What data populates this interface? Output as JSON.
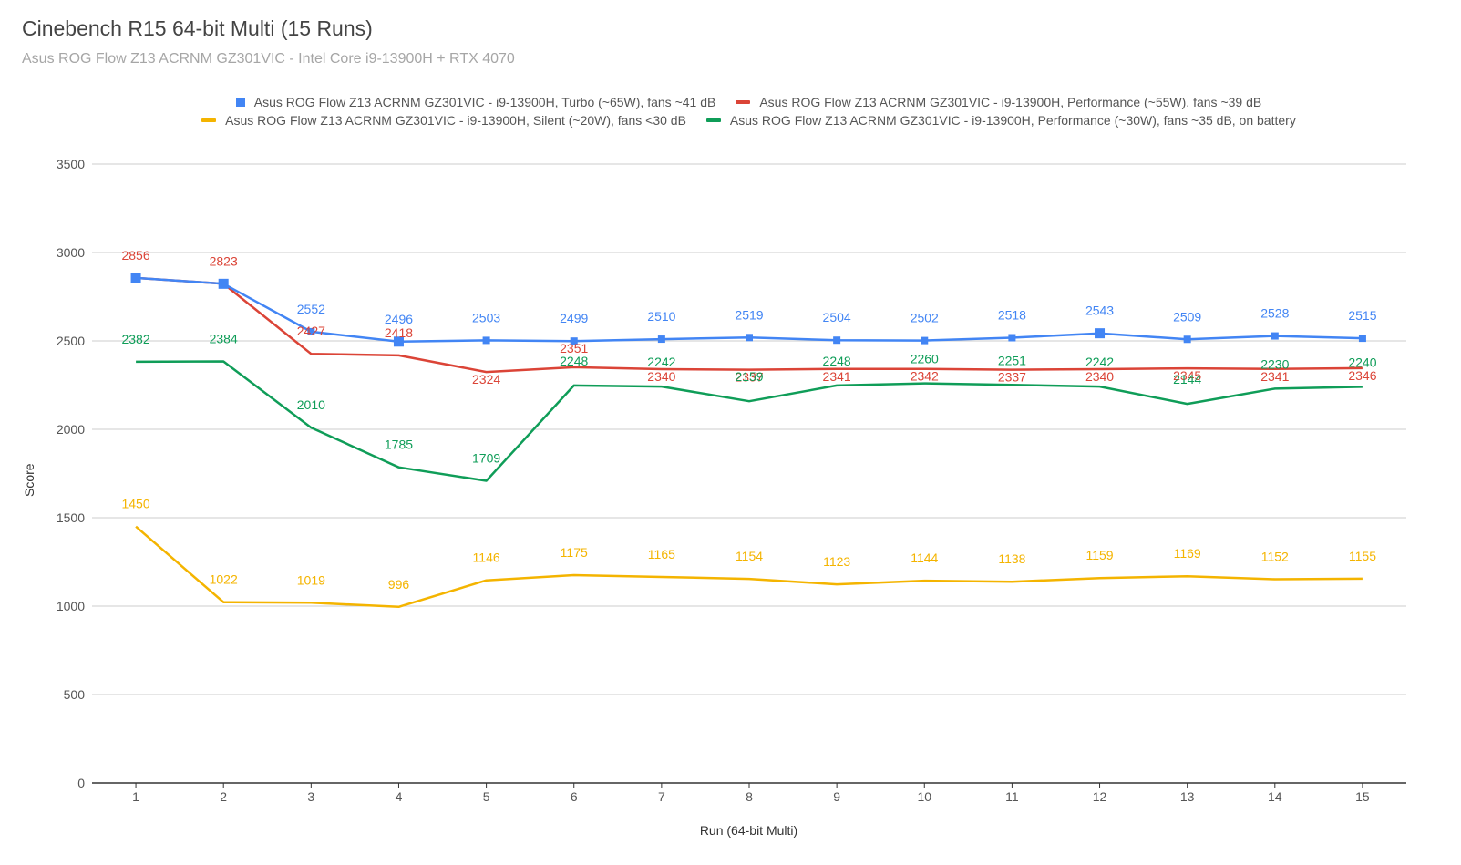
{
  "chart_data": {
    "type": "line",
    "title": "Cinebench R15 64-bit Multi (15 Runs)",
    "subtitle": "Asus ROG Flow Z13 ACRNM GZ301VIC - Intel Core i9-13900H + RTX 4070",
    "xlabel": "Run (64-bit Multi)",
    "ylabel": "Score",
    "ylim": [
      0,
      3500
    ],
    "yticks": [
      "0",
      "500",
      "1000",
      "1500",
      "2000",
      "2500",
      "3000",
      "3500"
    ],
    "categories": [
      "1",
      "2",
      "3",
      "4",
      "5",
      "6",
      "7",
      "8",
      "9",
      "10",
      "11",
      "12",
      "13",
      "14",
      "15"
    ],
    "legend_position": "top-center",
    "series": [
      {
        "name": "Asus ROG Flow Z13 ACRNM GZ301VIC - i9-13900H, Turbo (~65W), fans ~41 dB",
        "color": "#4285f4",
        "marker": "square",
        "values": [
          2856,
          2823,
          2552,
          2496,
          2503,
          2499,
          2510,
          2519,
          2504,
          2502,
          2518,
          2543,
          2509,
          2528,
          2515
        ],
        "labels": [
          "",
          "",
          "2552",
          "2496",
          "2503",
          "2499",
          "2510",
          "2519",
          "2504",
          "2502",
          "2518",
          "2543",
          "2509",
          "2528",
          "2515"
        ]
      },
      {
        "name": "Asus ROG Flow Z13 ACRNM GZ301VIC - i9-13900H, Performance (~55W), fans ~39 dB",
        "color": "#db4437",
        "marker": "none",
        "values": [
          2856,
          2823,
          2427,
          2418,
          2324,
          2351,
          2340,
          2337,
          2341,
          2342,
          2337,
          2340,
          2345,
          2341,
          2346
        ],
        "labels": [
          "2856",
          "2823",
          "2427",
          "2418",
          "2324",
          "2351",
          "2340",
          "2337",
          "2341",
          "2342",
          "2337",
          "2340",
          "2345",
          "2341",
          "2346"
        ]
      },
      {
        "name": "Asus ROG Flow Z13 ACRNM GZ301VIC - i9-13900H, Silent (~20W), fans <30 dB",
        "color": "#f4b400",
        "marker": "none",
        "values": [
          1450,
          1022,
          1019,
          996,
          1146,
          1175,
          1165,
          1154,
          1123,
          1144,
          1138,
          1159,
          1169,
          1152,
          1155
        ],
        "labels": [
          "1450",
          "1022",
          "1019",
          "996",
          "1146",
          "1175",
          "1165",
          "1154",
          "1123",
          "1144",
          "1138",
          "1159",
          "1169",
          "1152",
          "1155"
        ]
      },
      {
        "name": "Asus ROG Flow Z13 ACRNM GZ301VIC - i9-13900H, Performance (~30W), fans ~35 dB, on battery",
        "color": "#0f9d58",
        "marker": "none",
        "values": [
          2382,
          2384,
          2010,
          1785,
          1709,
          2248,
          2242,
          2159,
          2248,
          2260,
          2251,
          2242,
          2144,
          2230,
          2240
        ],
        "labels": [
          "2382",
          "2384",
          "2010",
          "1785",
          "1709",
          "2248",
          "2242",
          "2159",
          "2248",
          "2260",
          "2251",
          "2242",
          "2144",
          "2230",
          "2240"
        ]
      }
    ]
  }
}
